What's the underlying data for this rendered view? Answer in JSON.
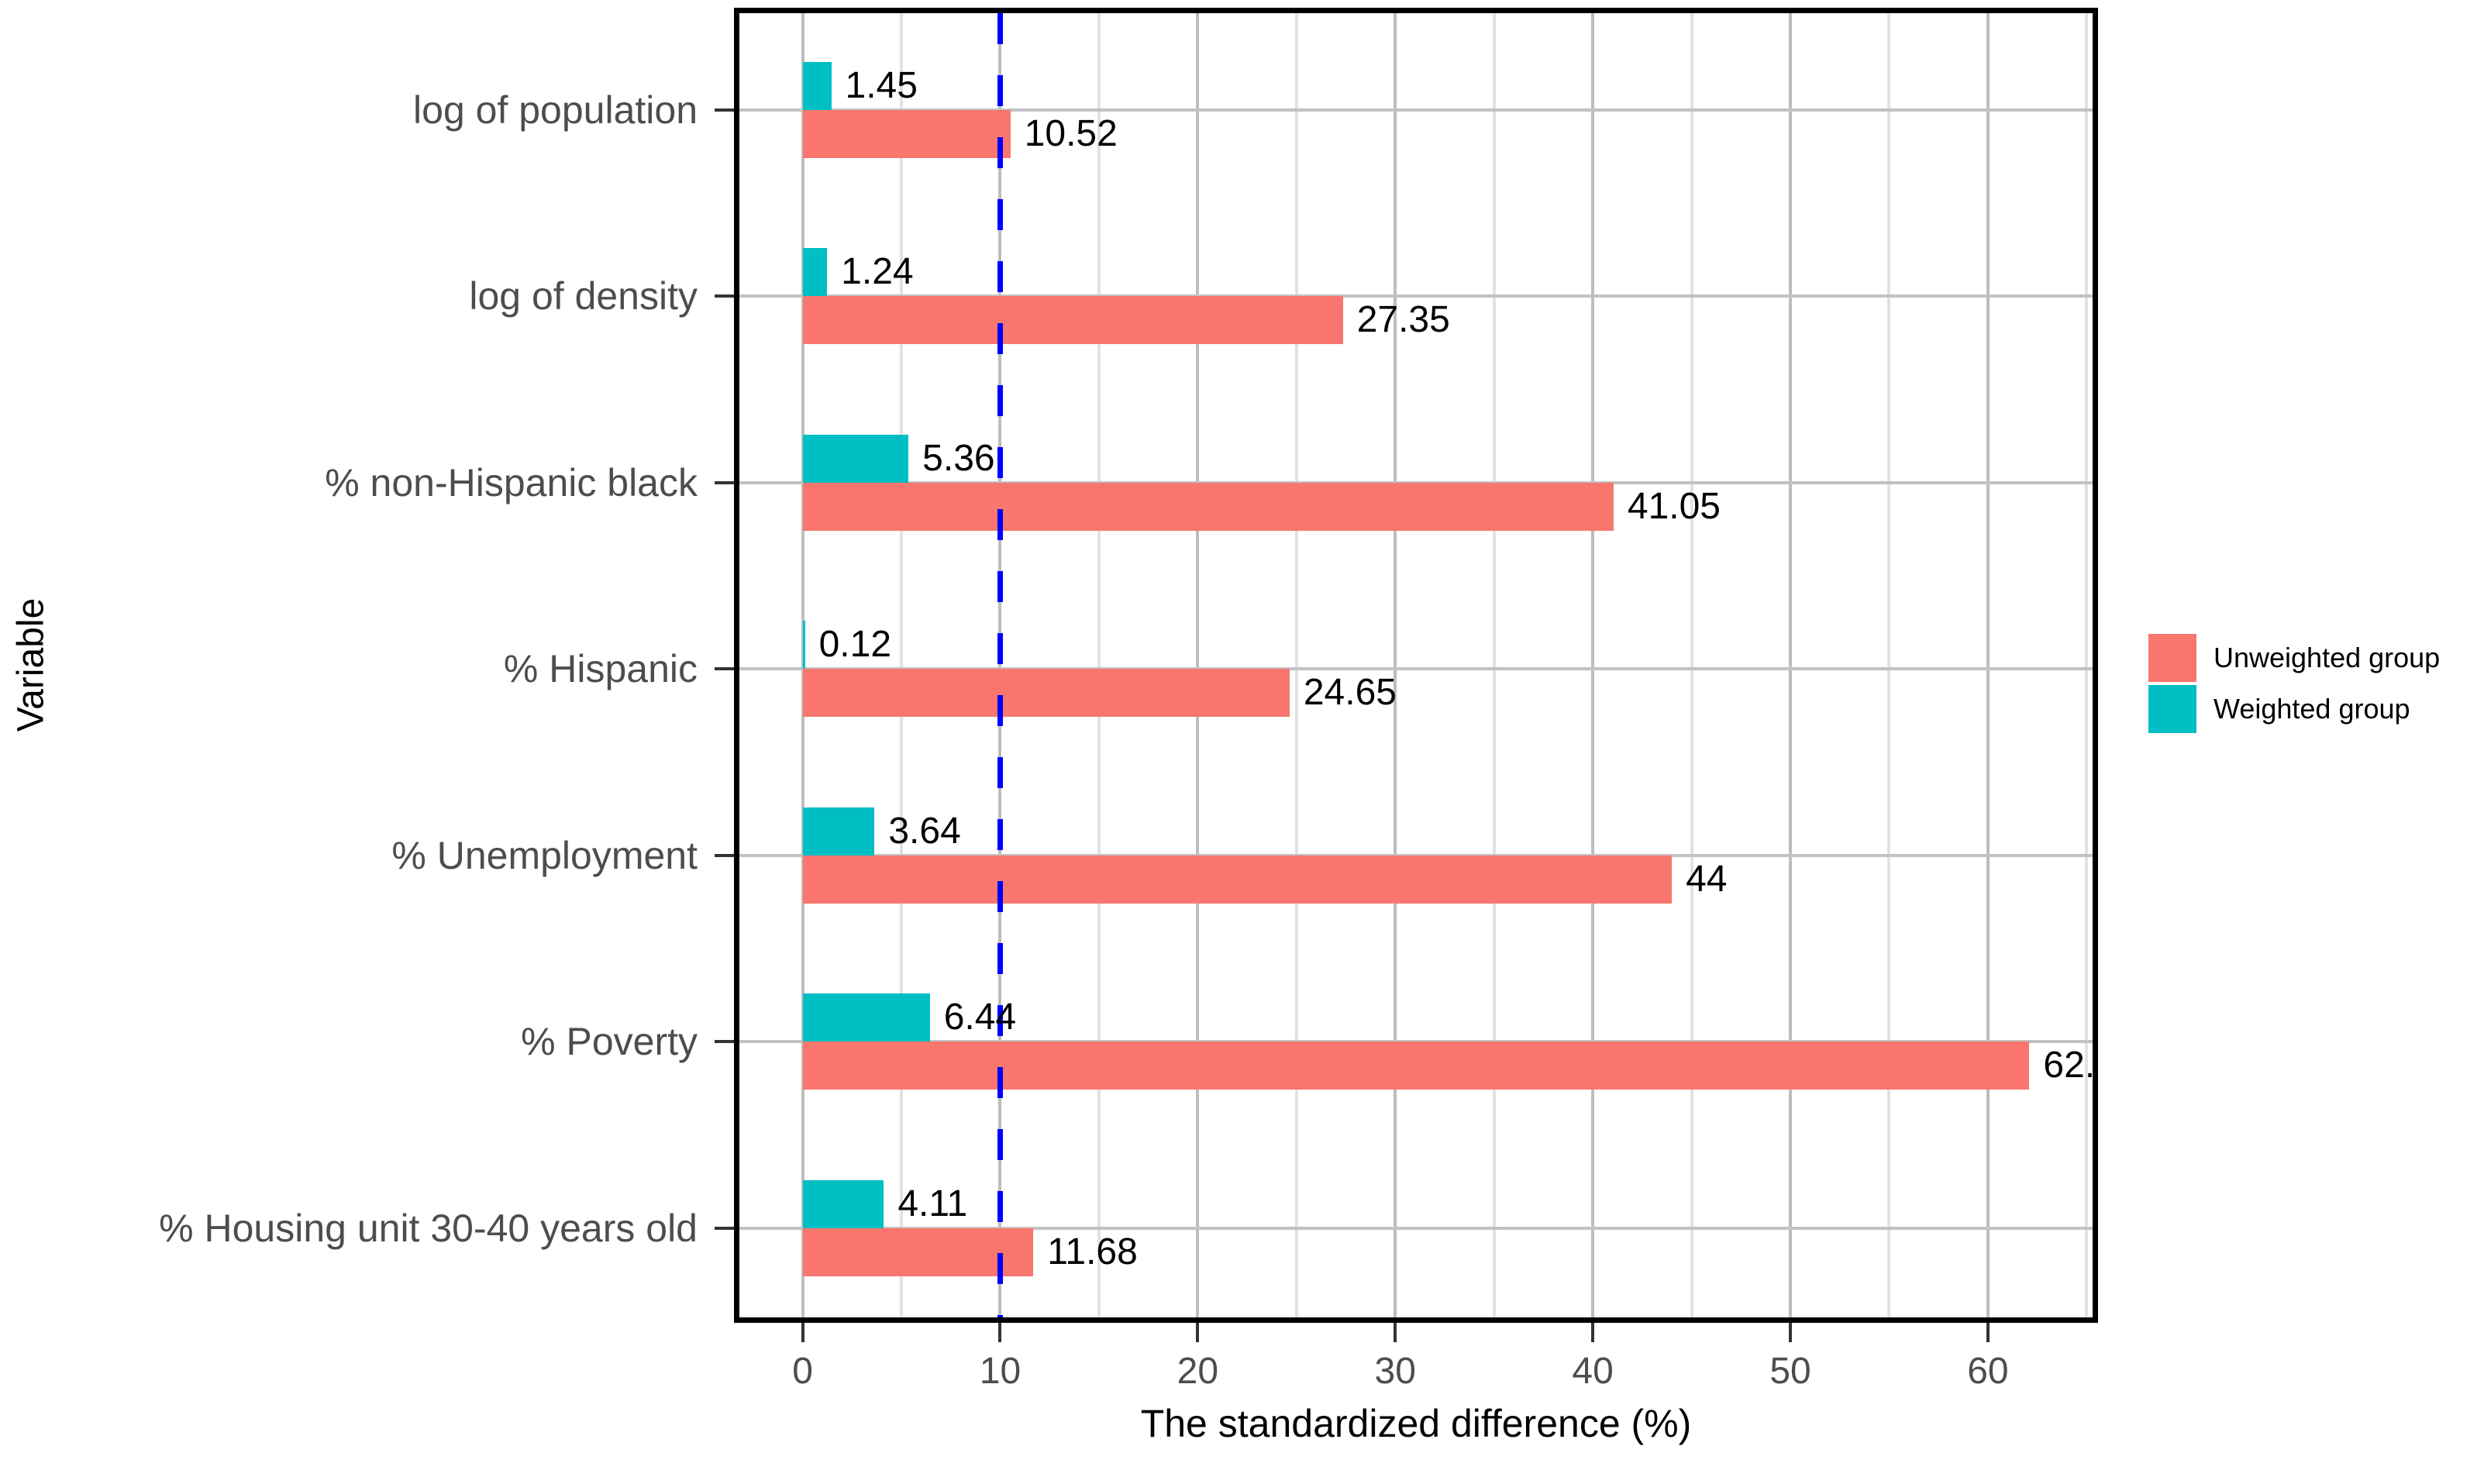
{
  "chart_data": {
    "type": "bar",
    "orientation": "horizontal",
    "title": "",
    "xlabel": "The standardized difference (%)",
    "ylabel": "Variable",
    "categories": [
      "log of population",
      "log of density",
      "% non-Hispanic black",
      "% Hispanic",
      "% Unemployment",
      "% Poverty",
      "% Housing unit 30-40 years old"
    ],
    "series": [
      {
        "name": "Unweighted group",
        "color": "#F8766D",
        "values": [
          10.52,
          27.35,
          41.05,
          24.65,
          44,
          62.1,
          11.68
        ],
        "value_labels": [
          "10.52",
          "27.35",
          "41.05",
          "24.65",
          "44",
          "62.",
          "11.68"
        ]
      },
      {
        "name": "Weighted group",
        "color": "#00BFC4",
        "values": [
          1.45,
          1.24,
          5.36,
          0.12,
          3.64,
          6.44,
          4.11
        ],
        "value_labels": [
          "1.45",
          "1.24",
          "5.36",
          "0.12",
          "3.64",
          "6.44",
          "4.11"
        ]
      }
    ],
    "x_ticks": [
      0,
      10,
      20,
      30,
      40,
      50,
      60
    ],
    "x_tick_labels": [
      "0",
      "10",
      "20",
      "30",
      "40",
      "50",
      "60"
    ],
    "x_minor_ticks": [
      5,
      15,
      25,
      35,
      45,
      55,
      65
    ],
    "xlim": [
      -3.2,
      65.3
    ],
    "reference_line": {
      "x": 10,
      "style": "dashed",
      "color": "#0000FE"
    },
    "legend": {
      "position": "right",
      "entries": [
        "Unweighted group",
        "Weighted group"
      ]
    },
    "grid": "major-and-minor-vertical, major-horizontal"
  }
}
